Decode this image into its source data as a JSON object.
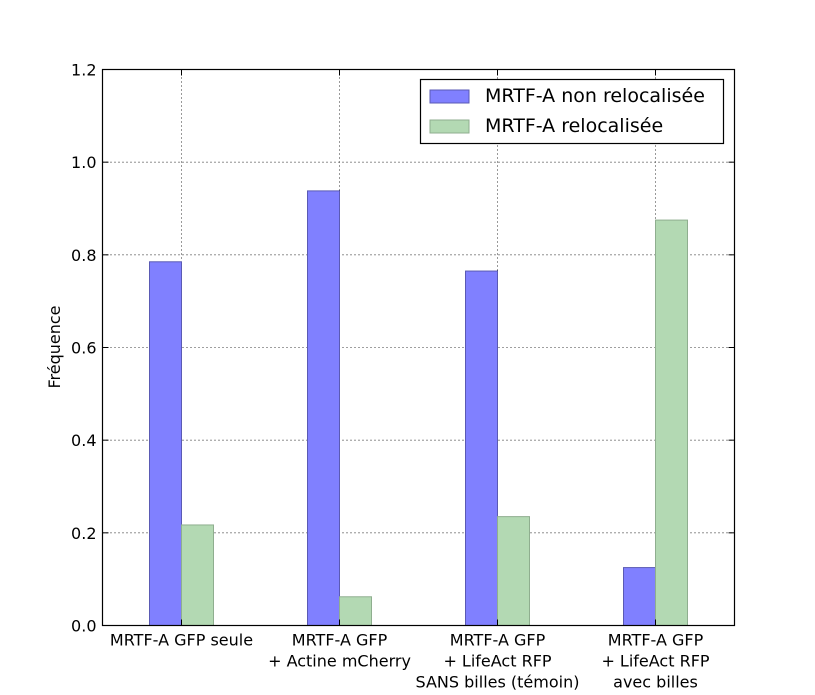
{
  "chart_data": {
    "type": "bar",
    "title": "",
    "xlabel": "",
    "ylabel": "Fréquence",
    "ylim": [
      0,
      1.2
    ],
    "yticks": [
      "0.0",
      "0.2",
      "0.4",
      "0.6",
      "0.8",
      "1.0",
      "1.2"
    ],
    "grid": true,
    "legend_position": "top-right",
    "categories": [
      [
        "MRTF-A GFP seule"
      ],
      [
        "MRTF-A GFP",
        "+ Actine mCherry"
      ],
      [
        "MRTF-A GFP",
        "+ LifeAct RFP",
        "SANS billes (témoin)"
      ],
      [
        "MRTF-A GFP",
        "+ LifeAct RFP",
        "avec billes"
      ]
    ],
    "series": [
      {
        "name": "MRTF-A non relocalisée",
        "color": "#8080ff",
        "edge": "#5a5ab4",
        "values": [
          0.785,
          0.938,
          0.765,
          0.125
        ]
      },
      {
        "name": "MRTF-A relocalisée",
        "color": "#b3d9b3",
        "edge": "#8fae8f",
        "values": [
          0.217,
          0.062,
          0.235,
          0.875
        ]
      }
    ]
  }
}
